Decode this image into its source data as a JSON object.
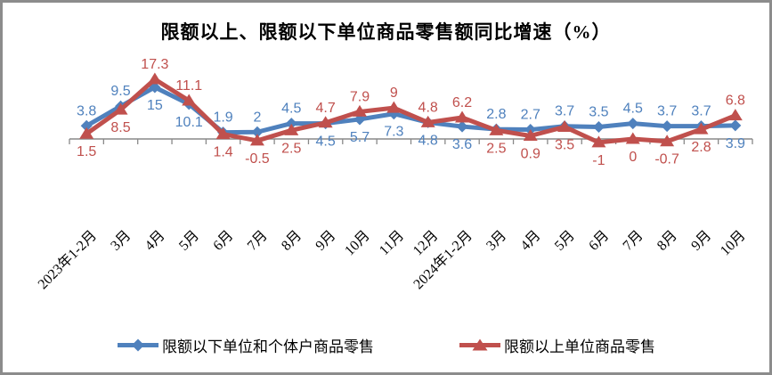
{
  "chart_data": {
    "type": "line",
    "title": "限额以上、限额以下单位商品零售额同比增速（%）",
    "categories": [
      "2023年1-2月",
      "3月",
      "4月",
      "5月",
      "6月",
      "7月",
      "8月",
      "9月",
      "10月",
      "11月",
      "12月",
      "2024年1-2月",
      "3月",
      "4月",
      "5月",
      "6月",
      "7月",
      "8月",
      "9月",
      "10月"
    ],
    "series": [
      {
        "name": "限额以下单位和个体户商品零售",
        "color": "#4F81BD",
        "marker": "diamond",
        "values": [
          3.8,
          9.5,
          15,
          10.1,
          1.9,
          2,
          4.5,
          4.5,
          5.7,
          7.3,
          4.8,
          3.6,
          2.8,
          2.7,
          3.7,
          3.5,
          4.5,
          3.7,
          3.7,
          3.9
        ]
      },
      {
        "name": "限额以上单位商品零售",
        "color": "#C0504D",
        "marker": "triangle-up",
        "values": [
          1.5,
          8.5,
          17.3,
          11.1,
          1.4,
          -0.5,
          2.5,
          4.7,
          7.9,
          9,
          4.8,
          6.2,
          2.5,
          0.9,
          3.5,
          -1,
          0,
          -0.7,
          2.8,
          6.8
        ]
      }
    ],
    "x_axis": {
      "axis_color": "#898989",
      "tick_marks": true,
      "label_rotation_deg": 45
    },
    "y_axis": {
      "visible": false,
      "implied_range": [
        -2,
        18
      ]
    },
    "grid": false,
    "legend_position": "bottom",
    "data_labels": {
      "shown": true,
      "colored_by_series": true
    }
  },
  "window": {
    "background": "#FFFFFF",
    "border_color": "#8C8C8C"
  }
}
